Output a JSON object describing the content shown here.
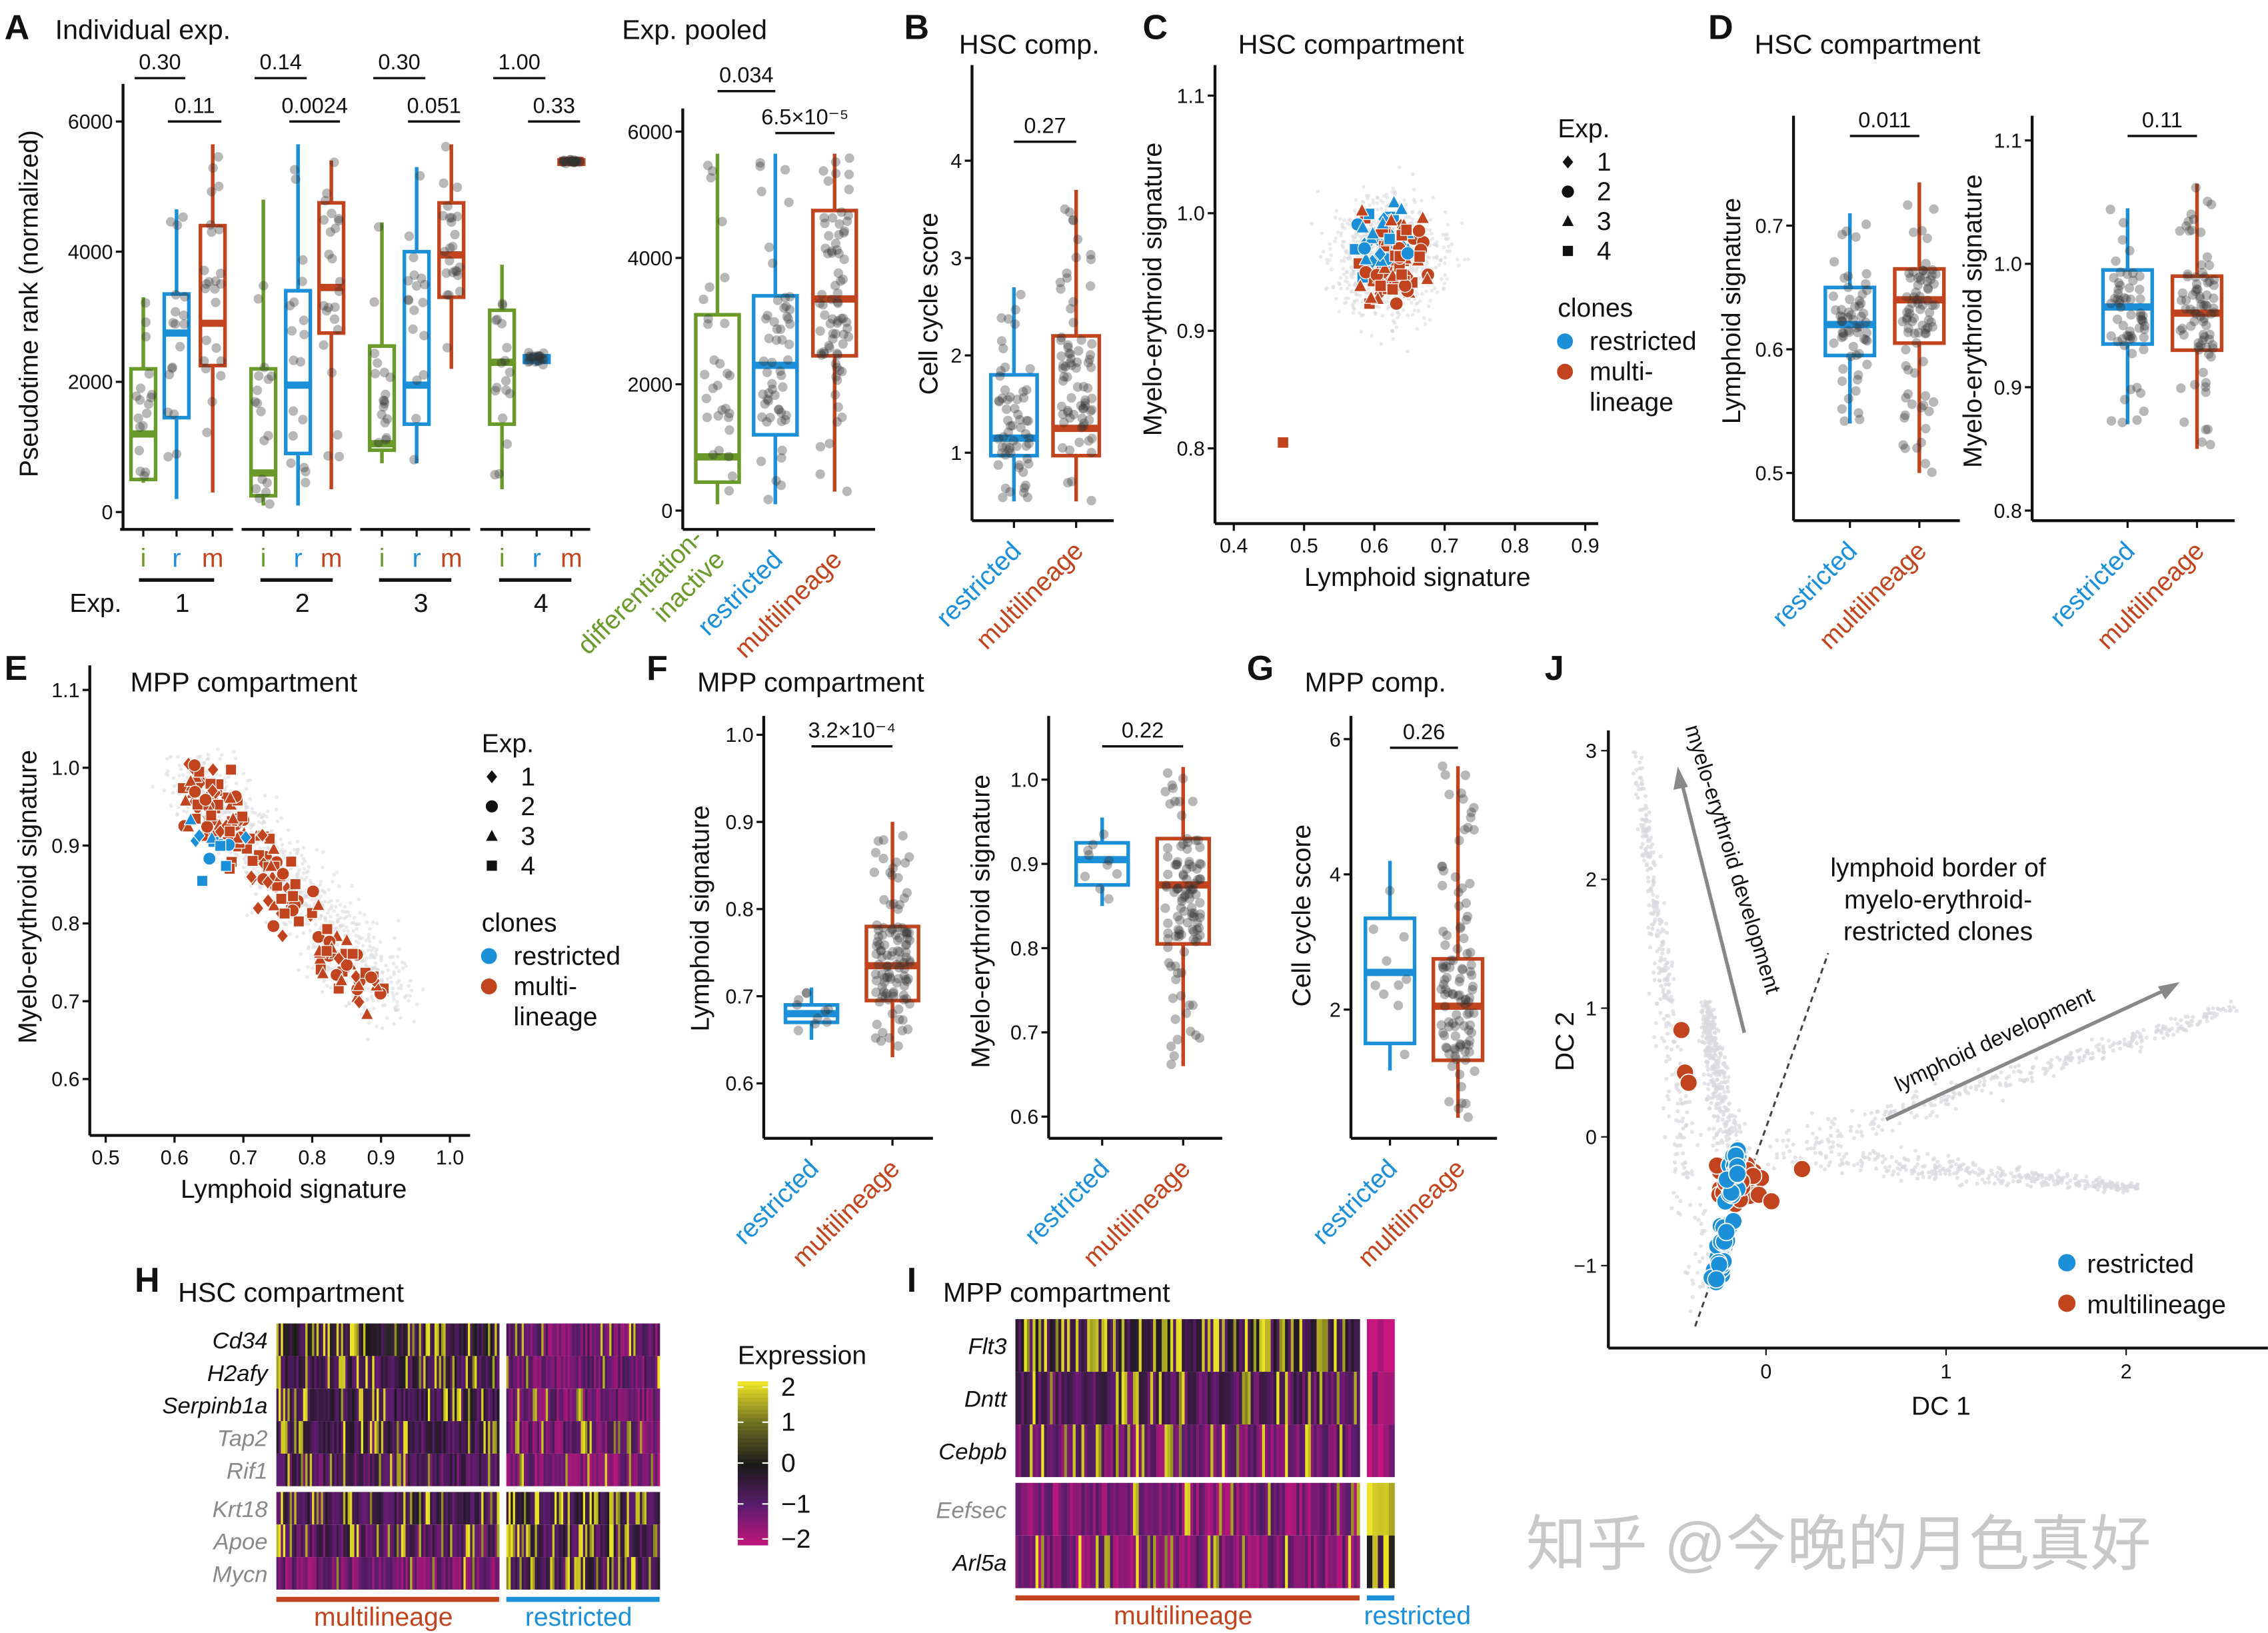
{
  "watermark": "知乎 @今晚的月色真好",
  "colors": {
    "inactive": "#6a9a2a",
    "restricted": "#1b8fd8",
    "multilineage": "#c1441e",
    "cloud": "#d9d9de",
    "point": "#333333"
  },
  "chart_data": [
    {
      "label": "A",
      "type": "box",
      "title": "Individual exp.",
      "ylabel": "Pseudotime rank (normalized)",
      "yticks": [
        "0",
        "2000",
        "4000",
        "6000"
      ],
      "ylim": [
        0,
        6500
      ],
      "letters": [
        "i",
        "r",
        "m"
      ],
      "exp_label": "Exp.",
      "experiments": [
        {
          "name": "1",
          "p_ir": "0.30",
          "p_rm": "0.11",
          "boxes": [
            {
              "lo": 450,
              "q1": 500,
              "med": 1200,
              "q3": 2200,
              "hi": 3300
            },
            {
              "lo": 200,
              "q1": 1450,
              "med": 2750,
              "q3": 3350,
              "hi": 4650
            },
            {
              "lo": 300,
              "q1": 2250,
              "med": 2900,
              "q3": 4400,
              "hi": 5650
            }
          ]
        },
        {
          "name": "2",
          "p_ir": "0.14",
          "p_rm": "0.0024",
          "boxes": [
            {
              "lo": 100,
              "q1": 250,
              "med": 600,
              "q3": 2200,
              "hi": 4800
            },
            {
              "lo": 100,
              "q1": 900,
              "med": 1950,
              "q3": 3400,
              "hi": 5650
            },
            {
              "lo": 350,
              "q1": 2750,
              "med": 3450,
              "q3": 4750,
              "hi": 5400
            }
          ]
        },
        {
          "name": "3",
          "p_ir": "0.30",
          "p_rm": "0.051",
          "boxes": [
            {
              "lo": 750,
              "q1": 950,
              "med": 1050,
              "q3": 2550,
              "hi": 4450
            },
            {
              "lo": 750,
              "q1": 1350,
              "med": 1950,
              "q3": 4000,
              "hi": 5300
            },
            {
              "lo": 2200,
              "q1": 3300,
              "med": 3950,
              "q3": 4750,
              "hi": 5650
            }
          ]
        },
        {
          "name": "4",
          "p_ir": "1.00",
          "p_rm": "0.33",
          "boxes": [
            {
              "lo": 350,
              "q1": 1350,
              "med": 2300,
              "q3": 3100,
              "hi": 3800
            },
            {
              "lo": 2250,
              "q1": 2300,
              "med": 2350,
              "q3": 2400,
              "hi": 2450
            },
            {
              "lo": 5350,
              "q1": 5370,
              "med": 5400,
              "q3": 5410,
              "hi": 5420
            }
          ]
        }
      ]
    },
    {
      "type": "box",
      "title": "Exp. pooled",
      "yticks": [
        "0",
        "2000",
        "4000",
        "6000"
      ],
      "ylim": [
        0,
        6500
      ],
      "categories": [
        {
          "lines": [
            "differentiation-",
            "inactive"
          ],
          "color": "inactive"
        },
        {
          "lines": [
            "restricted"
          ],
          "color": "restricted"
        },
        {
          "lines": [
            "multilineage"
          ],
          "color": "multilineage"
        }
      ],
      "boxes": [
        {
          "lo": 100,
          "q1": 450,
          "med": 850,
          "q3": 3100,
          "hi": 5650
        },
        {
          "lo": 100,
          "q1": 1200,
          "med": 2300,
          "q3": 3400,
          "hi": 5650
        },
        {
          "lo": 300,
          "q1": 2450,
          "med": 3350,
          "q3": 4750,
          "hi": 5650
        }
      ],
      "pvalues": [
        {
          "pair": [
            0,
            1
          ],
          "label": "0.034"
        },
        {
          "pair": [
            1,
            2
          ],
          "label": "6.5×10⁻⁵"
        }
      ]
    },
    {
      "label": "B",
      "type": "box",
      "title": "HSC comp.",
      "ylabel": "Cell cycle score",
      "yticks": [
        "1",
        "2",
        "3",
        "4"
      ],
      "categories": [
        {
          "lines": [
            "restricted"
          ],
          "color": "restricted"
        },
        {
          "lines": [
            "multilineage"
          ],
          "color": "multilineage"
        }
      ],
      "boxes": [
        {
          "lo": 0.5,
          "q1": 0.97,
          "med": 1.15,
          "q3": 1.8,
          "hi": 2.7
        },
        {
          "lo": 0.5,
          "q1": 0.97,
          "med": 1.25,
          "q3": 2.2,
          "hi": 3.7
        }
      ],
      "pvalues": [
        {
          "pair": [
            0,
            1
          ],
          "label": "0.27"
        }
      ]
    },
    {
      "label": "C",
      "type": "scatter",
      "title": "HSC compartment",
      "xlabel": "Lymphoid signature",
      "ylabel": "Myelo-erythroid signature",
      "xticks": [
        "0.4",
        "0.5",
        "0.6",
        "0.7",
        "0.8",
        "0.9"
      ],
      "yticks": [
        "0.8",
        "0.9",
        "1.0",
        "1.1"
      ],
      "legend": {
        "exp_title": "Exp.",
        "exp": [
          {
            "label": "1",
            "shape": "diamond"
          },
          {
            "label": "2",
            "shape": "circle"
          },
          {
            "label": "3",
            "shape": "triangle"
          },
          {
            "label": "4",
            "shape": "square"
          }
        ],
        "clones_title": "clones",
        "clones": [
          {
            "lines": [
              "restricted"
            ],
            "color": "restricted"
          },
          {
            "lines": [
              "multi-",
              "lineage"
            ],
            "color": "multilineage"
          }
        ]
      }
    },
    {
      "label": "D",
      "type": "box",
      "title": "HSC compartment",
      "ylabel": "Lymphoid signature",
      "yticks": [
        "0.5",
        "0.6",
        "0.7"
      ],
      "categories": [
        {
          "lines": [
            "restricted"
          ],
          "color": "restricted"
        },
        {
          "lines": [
            "multilineage"
          ],
          "color": "multilineage"
        }
      ],
      "boxes": [
        {
          "lo": 0.54,
          "q1": 0.595,
          "med": 0.62,
          "q3": 0.65,
          "hi": 0.71
        },
        {
          "lo": 0.5,
          "q1": 0.605,
          "med": 0.64,
          "q3": 0.665,
          "hi": 0.735
        }
      ],
      "pvalues": [
        {
          "pair": [
            0,
            1
          ],
          "label": "0.011"
        }
      ]
    },
    {
      "type": "box",
      "ylabel": "Myelo-erythroid signature",
      "yticks": [
        "0.8",
        "0.9",
        "1.0",
        "1.1"
      ],
      "categories": [
        {
          "lines": [
            "restricted"
          ],
          "color": "restricted"
        },
        {
          "lines": [
            "multilineage"
          ],
          "color": "multilineage"
        }
      ],
      "boxes": [
        {
          "lo": 0.87,
          "q1": 0.935,
          "med": 0.965,
          "q3": 0.995,
          "hi": 1.045
        },
        {
          "lo": 0.85,
          "q1": 0.93,
          "med": 0.96,
          "q3": 0.99,
          "hi": 1.065
        }
      ],
      "pvalues": [
        {
          "pair": [
            0,
            1
          ],
          "label": "0.11"
        }
      ]
    },
    {
      "label": "E",
      "type": "scatter",
      "title": "MPP compartment",
      "xlabel": "Lymphoid signature",
      "ylabel": "Myelo-erythroid signature",
      "xticks": [
        "0.5",
        "0.6",
        "0.7",
        "0.8",
        "0.9",
        "1.0"
      ],
      "yticks": [
        "0.6",
        "0.7",
        "0.8",
        "0.9",
        "1.0",
        "1.1"
      ],
      "legend": {
        "exp_title": "Exp.",
        "exp": [
          {
            "label": "1",
            "shape": "diamond"
          },
          {
            "label": "2",
            "shape": "circle"
          },
          {
            "label": "3",
            "shape": "triangle"
          },
          {
            "label": "4",
            "shape": "square"
          }
        ],
        "clones_title": "clones",
        "clones": [
          {
            "lines": [
              "restricted"
            ],
            "color": "restricted"
          },
          {
            "lines": [
              "multi-",
              "lineage"
            ],
            "color": "multilineage"
          }
        ]
      }
    },
    {
      "label": "F",
      "type": "box",
      "title": "MPP compartment",
      "ylabel": "Lymphoid signature",
      "yticks": [
        "0.6",
        "0.7",
        "0.8",
        "0.9",
        "1.0"
      ],
      "categories": [
        {
          "lines": [
            "restricted"
          ],
          "color": "restricted"
        },
        {
          "lines": [
            "multilineage"
          ],
          "color": "multilineage"
        }
      ],
      "boxes": [
        {
          "lo": 0.65,
          "q1": 0.67,
          "med": 0.68,
          "q3": 0.69,
          "hi": 0.71
        },
        {
          "lo": 0.63,
          "q1": 0.695,
          "med": 0.735,
          "q3": 0.78,
          "hi": 0.9
        }
      ],
      "pvalues": [
        {
          "pair": [
            0,
            1
          ],
          "label": "3.2×10⁻⁴"
        }
      ]
    },
    {
      "type": "box",
      "ylabel": "Myelo-erythroid signature",
      "yticks": [
        "0.6",
        "0.7",
        "0.8",
        "0.9",
        "1.0"
      ],
      "categories": [
        {
          "lines": [
            "restricted"
          ],
          "color": "restricted"
        },
        {
          "lines": [
            "multilineage"
          ],
          "color": "multilineage"
        }
      ],
      "boxes": [
        {
          "lo": 0.85,
          "q1": 0.875,
          "med": 0.905,
          "q3": 0.925,
          "hi": 0.955
        },
        {
          "lo": 0.66,
          "q1": 0.805,
          "med": 0.875,
          "q3": 0.93,
          "hi": 1.015
        }
      ],
      "pvalues": [
        {
          "pair": [
            0,
            1
          ],
          "label": "0.22"
        }
      ]
    },
    {
      "label": "G",
      "type": "box",
      "title": "MPP comp.",
      "ylabel": "Cell cycle score",
      "yticks": [
        "2",
        "4",
        "6"
      ],
      "categories": [
        {
          "lines": [
            "restricted"
          ],
          "color": "restricted"
        },
        {
          "lines": [
            "multilineage"
          ],
          "color": "multilineage"
        }
      ],
      "boxes": [
        {
          "lo": 1.1,
          "q1": 1.5,
          "med": 2.55,
          "q3": 3.35,
          "hi": 4.2
        },
        {
          "lo": 0.4,
          "q1": 1.25,
          "med": 2.05,
          "q3": 2.75,
          "hi": 5.6
        }
      ],
      "pvalues": [
        {
          "pair": [
            0,
            1
          ],
          "label": "0.26"
        }
      ]
    },
    {
      "label": "H",
      "type": "heatmap",
      "title": "HSC compartment",
      "genes": [
        {
          "name": "Cd34",
          "muted": false
        },
        {
          "name": "H2afy",
          "muted": false
        },
        {
          "name": "Serpinb1a",
          "muted": false
        },
        {
          "name": "Tap2",
          "muted": true
        },
        {
          "name": "Rif1",
          "muted": true
        },
        {
          "name": "Krt18",
          "muted": true
        },
        {
          "name": "Apoe",
          "muted": true
        },
        {
          "name": "Mycn",
          "muted": true
        }
      ],
      "row_split_after": 5,
      "groups": [
        {
          "label": "multilineage",
          "color": "multilineage"
        },
        {
          "label": "restricted",
          "color": "restricted"
        }
      ],
      "colorbar": {
        "title": "Expression",
        "ticks": [
          "2",
          "1",
          "0",
          "−1",
          "−2"
        ],
        "range": [
          -2,
          2
        ],
        "colors": [
          "#c4167c",
          "#5b1c6e",
          "#1a1a1a",
          "#6c6c22",
          "#ece326"
        ]
      }
    },
    {
      "label": "I",
      "type": "heatmap",
      "title": "MPP compartment",
      "genes": [
        {
          "name": "Flt3",
          "muted": false
        },
        {
          "name": "Dntt",
          "muted": false
        },
        {
          "name": "Cebpb",
          "muted": false
        },
        {
          "name": "Eefsec",
          "muted": true
        },
        {
          "name": "Arl5a",
          "muted": false
        }
      ],
      "row_split_after": 3,
      "groups": [
        {
          "label": "multilineage",
          "color": "multilineage"
        },
        {
          "label": "restricted",
          "color": "restricted"
        }
      ]
    },
    {
      "label": "J",
      "type": "scatter",
      "xlabel": "DC 1",
      "ylabel": "DC 2",
      "xticks": [
        "0",
        "1",
        "2"
      ],
      "yticks": [
        "−1",
        "0",
        "1",
        "2",
        "3"
      ],
      "annotations": {
        "myelo": "myelo-erythroid development",
        "lymph": "lymphoid development",
        "border": [
          "lymphoid border of",
          "myelo-erythroid-",
          "restricted clones"
        ]
      },
      "legend": [
        {
          "label": "restricted",
          "color": "restricted"
        },
        {
          "label": "multilineage",
          "color": "multilineage"
        }
      ]
    }
  ]
}
